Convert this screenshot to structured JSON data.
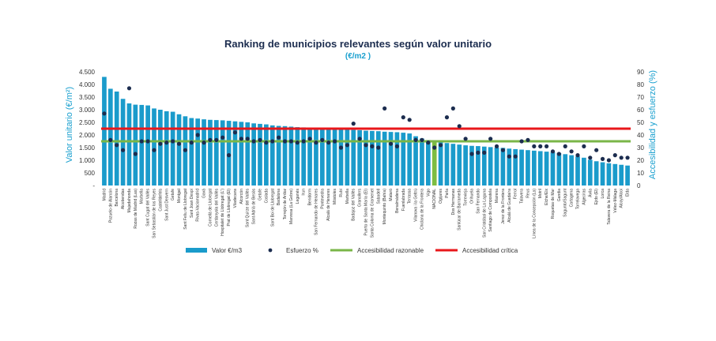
{
  "chart_data": {
    "type": "bar",
    "title": "Ranking de municipios relevantes según valor unitario",
    "subtitle": "(€/m2 )",
    "ylabel": "Valor unitario (€/m²)",
    "y2label": "Accesibilidad y esfuerzo (%)",
    "ylim": [
      0,
      4500
    ],
    "y2lim": [
      0,
      90
    ],
    "yticks": [
      "-",
      "500",
      "1.000",
      "1.500",
      "2.000",
      "2.500",
      "3.000",
      "3.500",
      "4.000",
      "4.500"
    ],
    "y2ticks": [
      "0",
      "10",
      "20",
      "30",
      "40",
      "50",
      "60",
      "70",
      "80",
      "90"
    ],
    "categories": [
      "Madrid",
      "Pozuelo de Alarcón",
      "Barcelona",
      "Alcobendas",
      "Majadahonda",
      "Rozas de Madrid (Las)",
      "Marbella",
      "Sant Cugat del Vallès",
      "San Sebastián de los Reyes",
      "Castelldefels",
      "Sant Just Desvern",
      "Getafe",
      "Montgat",
      "Sant Feliu de Llobregat",
      "Sant Joan Despí",
      "Rivas-Vaciamadrid",
      "Gavà",
      "Cornellà de Llobregat",
      "Cerdanyola del Vallès",
      "Hospitalet de Llobregat (L')",
      "Prat de Llobregat (El)",
      "Viladecans",
      "Alcorcón",
      "Sant Quirze del Vallès",
      "Sant Adrià de Besòs",
      "Getafe",
      "Coslada",
      "Sant Boi de Llobregat",
      "Badalona",
      "Torrejón de Ardoz",
      "Manresa (La Gebre)",
      "Leganés",
      "Irun",
      "Benidorm",
      "San Fernando de Henares",
      "Pontevedra",
      "Alcalá de Henares",
      "Móstoles",
      "Rubí",
      "Marbella",
      "Badajoz del Vallès",
      "Granollers",
      "Puerto de Santa María (El)",
      "Santa Coloma de Gramenet",
      "Sabadell",
      "Montequinto (Bahía)",
      "Mataró",
      "Benalmádena",
      "Fuenlabrada",
      "Terrassa",
      "Vilanova i la Geltrú",
      "Chiclana de la Frontera",
      "Vigo",
      "NACIONAL",
      "Ogíjares",
      "Parla",
      "Dos Hermanas",
      "Sanlúcar de Barrameda",
      "Torrevieja",
      "Orihuela",
      "San Fernando",
      "San Cristóbal de La Laguna",
      "Santiago de Compostela",
      "Mairena",
      "Jerez de la Frontera",
      "Alcalá de Guadaíra",
      "Ferrol",
      "Talavera",
      "Reus",
      "Línea de la Concepción (La)",
      "Motril",
      "Elche/Elx",
      "Roquetas de Mar",
      "Gandia",
      "Sagunto/Sagunt",
      "Cartagena",
      "Torrelavega",
      "Algeciras",
      "Ávila",
      "Ejido (El)",
      "Lorca",
      "Talavera de la Reina",
      "Vélez-Málaga",
      "Alcoy/Alcoi",
      "Elda"
    ],
    "series": [
      {
        "name": "Valor €/m3",
        "type": "bar",
        "axis": "left",
        "color": "#1a9bcb",
        "highlight_color": "#7dbd42",
        "highlight_category": "NACIONAL",
        "values": [
          4300,
          3830,
          3720,
          3430,
          3250,
          3200,
          3190,
          3170,
          3050,
          3000,
          2940,
          2920,
          2820,
          2740,
          2670,
          2650,
          2620,
          2600,
          2590,
          2580,
          2560,
          2540,
          2520,
          2500,
          2460,
          2440,
          2420,
          2380,
          2360,
          2350,
          2330,
          2310,
          2300,
          2280,
          2270,
          2250,
          2240,
          2230,
          2220,
          2210,
          2200,
          2190,
          2170,
          2160,
          2150,
          2130,
          2120,
          2110,
          2090,
          2060,
          1950,
          1860,
          1800,
          1780,
          1720,
          1680,
          1650,
          1620,
          1590,
          1570,
          1560,
          1540,
          1520,
          1500,
          1490,
          1460,
          1440,
          1420,
          1400,
          1380,
          1360,
          1340,
          1320,
          1280,
          1240,
          1200,
          1150,
          1100,
          1020,
          960,
          920,
          880,
          850,
          820,
          790
        ]
      },
      {
        "name": "Esfuerzo %",
        "type": "scatter",
        "axis": "right",
        "color": "#1c2d4f",
        "values": [
          57,
          36,
          32,
          28,
          77,
          25,
          35,
          35,
          28,
          33,
          34,
          35,
          33,
          28,
          34,
          40,
          34,
          36,
          36,
          38,
          24,
          42,
          37,
          37,
          35,
          36,
          34,
          35,
          38,
          35,
          35,
          34,
          35,
          37,
          34,
          36,
          34,
          35,
          30,
          32,
          49,
          37,
          32,
          31,
          30,
          61,
          33,
          31,
          54,
          52,
          36,
          36,
          34,
          30,
          32,
          54,
          61,
          47,
          37,
          25,
          26,
          26,
          37,
          31,
          28,
          23,
          23,
          35,
          36,
          31,
          31,
          31,
          27,
          25,
          31,
          27,
          24,
          31,
          22,
          28,
          21,
          20,
          24,
          22,
          22
        ]
      }
    ],
    "reference_lines": [
      {
        "name": "Accesibilidad razonable",
        "axis": "right",
        "value": 35,
        "color": "#7ab648"
      },
      {
        "name": "Accesibilidad crítica",
        "axis": "right",
        "value": 45,
        "color": "#e8171b"
      }
    ],
    "legend": {
      "position": "bottom",
      "items": [
        "Valor €/m3",
        "Esfuerzo %",
        "Accesibilidad razonable",
        "Accesibilidad crítica"
      ]
    },
    "grid": false
  }
}
